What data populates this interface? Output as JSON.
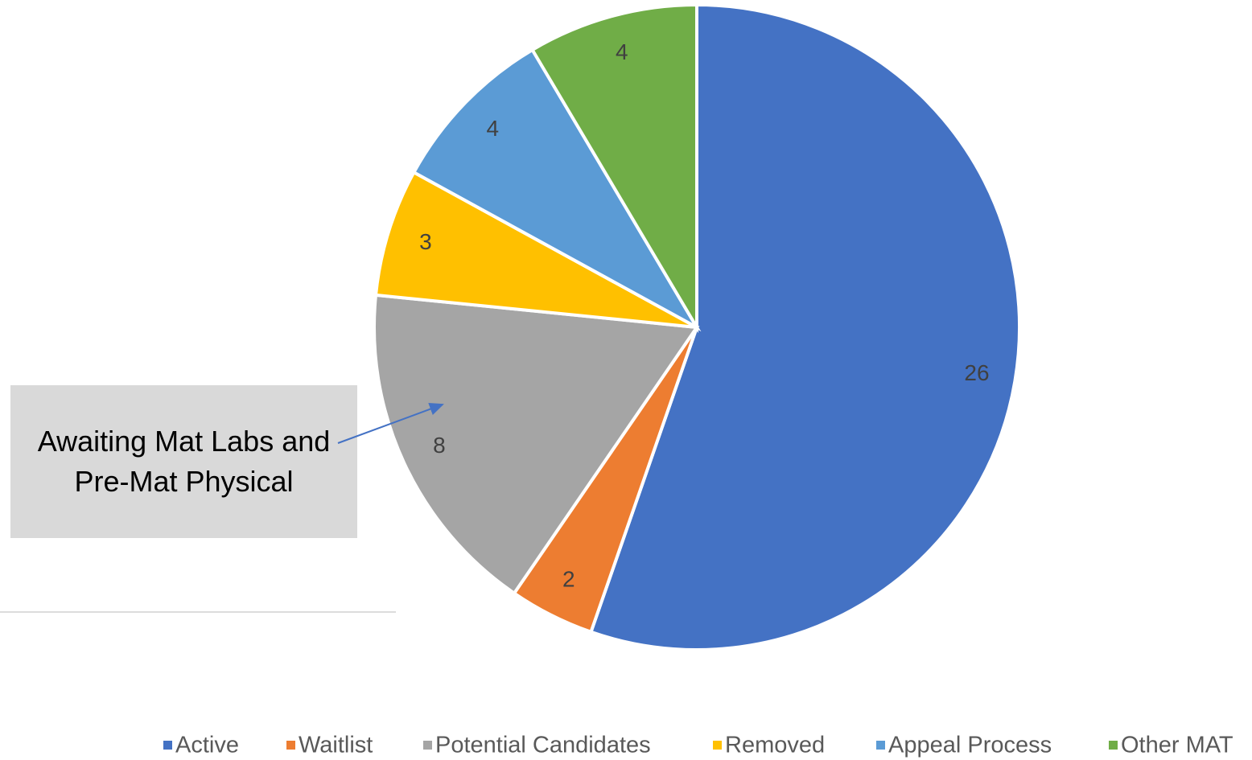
{
  "chart_data": {
    "type": "pie",
    "categories": [
      "Active",
      "Waitlist",
      "Potential Candidates",
      "Removed",
      "Appeal Process",
      "Other MAT"
    ],
    "values": [
      26,
      2,
      8,
      3,
      4,
      4
    ],
    "colors": [
      "#4472c4",
      "#ed7d31",
      "#a5a5a5",
      "#ffc000",
      "#5b9bd5",
      "#70ad47"
    ],
    "annotation": "Awaiting Mat Labs and Pre-Mat Physical",
    "legend": "bottom"
  }
}
